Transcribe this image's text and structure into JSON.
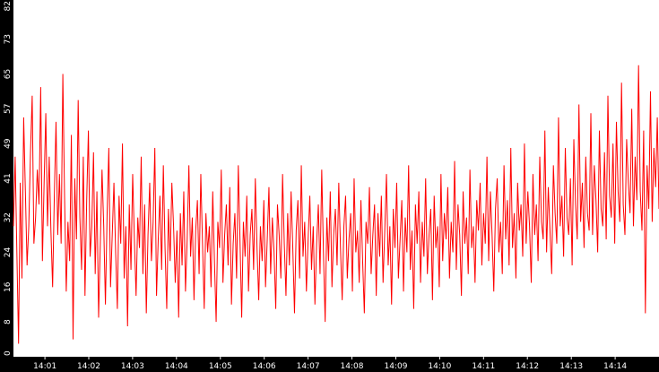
{
  "chart_data": {
    "type": "line",
    "title": "",
    "xlabel": "",
    "ylabel": "",
    "ylim": [
      0,
      82
    ],
    "yticks": [
      "0",
      "8",
      "16",
      "24",
      "32",
      "41",
      "49",
      "57",
      "65",
      "73",
      "82"
    ],
    "xticks": [
      "14:01",
      "14:02",
      "14:03",
      "14:04",
      "14:05",
      "14:06",
      "14:07",
      "14:08",
      "14:09",
      "14:10",
      "14:11",
      "14:12",
      "14:13",
      "14:14"
    ],
    "x_start": "14:00:17",
    "x_end": "14:15:00",
    "grid": false,
    "colors": {
      "background": "#ffffff",
      "frame": "#000000",
      "line": "#ff0000",
      "text": "#ffffff"
    },
    "series": [
      {
        "values": [
          30,
          46,
          24,
          3,
          40,
          18,
          55,
          38,
          21,
          30,
          47,
          60,
          26,
          32,
          43,
          35,
          62,
          22,
          40,
          56,
          30,
          46,
          29,
          16,
          37,
          54,
          28,
          42,
          26,
          65,
          37,
          15,
          31,
          22,
          51,
          4,
          41,
          27,
          59,
          32,
          20,
          46,
          14,
          36,
          52,
          23,
          30,
          47,
          19,
          38,
          9,
          26,
          43,
          30,
          12,
          33,
          48,
          16,
          28,
          40,
          24,
          11,
          37,
          26,
          49,
          18,
          30,
          7,
          35,
          20,
          42,
          27,
          14,
          32,
          25,
          46,
          19,
          35,
          10,
          28,
          40,
          22,
          31,
          48,
          14,
          27,
          37,
          20,
          44,
          25,
          11,
          34,
          22,
          40,
          30,
          17,
          29,
          9,
          33,
          21,
          38,
          15,
          27,
          44,
          23,
          32,
          13,
          29,
          36,
          19,
          42,
          26,
          11,
          33,
          24,
          30,
          16,
          38,
          22,
          8,
          31,
          25,
          43,
          17,
          28,
          35,
          21,
          39,
          12,
          26,
          33,
          18,
          44,
          27,
          9,
          31,
          23,
          37,
          15,
          28,
          34,
          20,
          41,
          25,
          13,
          30,
          22,
          36,
          16,
          27,
          39,
          19,
          32,
          24,
          11,
          35,
          28,
          18,
          42,
          26,
          14,
          33,
          21,
          38,
          25,
          10,
          29,
          36,
          18,
          44,
          23,
          31,
          15,
          27,
          37,
          20,
          30,
          12,
          26,
          35,
          19,
          43,
          24,
          8,
          32,
          22,
          38,
          16,
          28,
          34,
          21,
          40,
          25,
          13,
          30,
          37,
          18,
          27,
          33,
          15,
          41,
          24,
          29,
          17,
          36,
          22,
          10,
          31,
          26,
          39,
          19,
          28,
          35,
          14,
          33,
          23,
          37,
          17,
          29,
          42,
          21,
          30,
          12,
          34,
          25,
          40,
          18,
          27,
          36,
          15,
          32,
          24,
          44,
          20,
          29,
          11,
          35,
          26,
          38,
          17,
          31,
          23,
          41,
          19,
          28,
          34,
          13,
          37,
          25,
          30,
          16,
          42,
          22,
          33,
          27,
          39,
          18,
          31,
          24,
          45,
          20,
          35,
          28,
          14,
          38,
          26,
          32,
          19,
          43,
          25,
          30,
          17,
          36,
          29,
          40,
          21,
          33,
          26,
          46,
          22,
          38,
          28,
          15,
          34,
          41,
          24,
          31,
          19,
          44,
          27,
          36,
          21,
          48,
          25,
          33,
          18,
          40,
          29,
          35,
          23,
          49,
          26,
          38,
          30,
          17,
          42,
          28,
          35,
          22,
          46,
          31,
          27,
          52,
          24,
          39,
          29,
          19,
          44,
          33,
          26,
          55,
          30,
          37,
          23,
          48,
          32,
          28,
          41,
          21,
          50,
          35,
          27,
          58,
          31,
          40,
          25,
          46,
          33,
          29,
          56,
          28,
          44,
          36,
          24,
          52,
          34,
          30,
          47,
          27,
          60,
          37,
          32,
          49,
          26,
          54,
          38,
          31,
          63,
          35,
          28,
          50,
          40,
          33,
          57,
          30,
          46,
          36,
          67,
          38,
          29,
          52,
          10,
          44,
          34,
          61,
          31,
          48,
          39,
          55,
          34
        ]
      }
    ]
  }
}
